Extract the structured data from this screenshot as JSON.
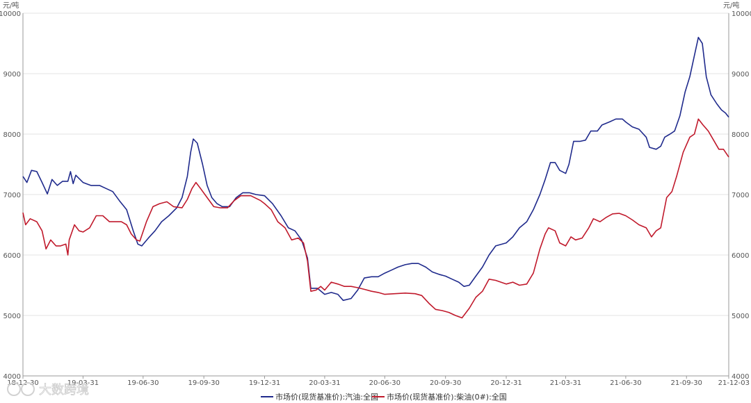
{
  "chart_data": {
    "type": "line",
    "unit_left": "元/吨",
    "unit_right": "元/吨",
    "ylim": [
      4000,
      10000
    ],
    "y_ticks": [
      4000,
      5000,
      6000,
      7000,
      8000,
      9000,
      10000
    ],
    "x_ticks": [
      "18-12-30",
      "19-03-31",
      "19-06-30",
      "19-09-30",
      "19-12-31",
      "20-03-31",
      "20-06-30",
      "20-09-30",
      "20-12-31",
      "21-03-31",
      "21-06-30",
      "21-09-30",
      "21-12-03"
    ],
    "grid": true,
    "legend_position": "bottom-center",
    "watermark": "大数跨境",
    "series": [
      {
        "name": "市场价(现货基准价):汽油:全国",
        "color": "#1f2a8c",
        "points": [
          [
            "18-12-30",
            7300
          ],
          [
            "19-01-05",
            7200
          ],
          [
            "19-01-12",
            7400
          ],
          [
            "19-01-20",
            7380
          ],
          [
            "19-01-28",
            7200
          ],
          [
            "19-02-05",
            7010
          ],
          [
            "19-02-12",
            7250
          ],
          [
            "19-02-20",
            7150
          ],
          [
            "19-02-28",
            7220
          ],
          [
            "19-03-08",
            7220
          ],
          [
            "19-03-12",
            7380
          ],
          [
            "19-03-16",
            7180
          ],
          [
            "19-03-20",
            7320
          ],
          [
            "19-03-31",
            7200
          ],
          [
            "19-04-12",
            7150
          ],
          [
            "19-04-25",
            7150
          ],
          [
            "19-05-05",
            7100
          ],
          [
            "19-05-15",
            7050
          ],
          [
            "19-05-25",
            6900
          ],
          [
            "19-06-05",
            6750
          ],
          [
            "19-06-15",
            6400
          ],
          [
            "19-06-22",
            6180
          ],
          [
            "19-06-28",
            6150
          ],
          [
            "19-07-08",
            6280
          ],
          [
            "19-07-18",
            6400
          ],
          [
            "19-07-28",
            6550
          ],
          [
            "19-08-08",
            6650
          ],
          [
            "19-08-20",
            6780
          ],
          [
            "19-08-28",
            6950
          ],
          [
            "19-09-05",
            7300
          ],
          [
            "19-09-10",
            7700
          ],
          [
            "19-09-14",
            7920
          ],
          [
            "19-09-20",
            7850
          ],
          [
            "19-09-28",
            7500
          ],
          [
            "19-10-05",
            7150
          ],
          [
            "19-10-12",
            6950
          ],
          [
            "19-10-20",
            6850
          ],
          [
            "19-10-28",
            6800
          ],
          [
            "19-11-08",
            6800
          ],
          [
            "19-11-18",
            6950
          ],
          [
            "19-11-28",
            7030
          ],
          [
            "19-12-08",
            7030
          ],
          [
            "19-12-18",
            7000
          ],
          [
            "19-12-31",
            6980
          ],
          [
            "20-01-12",
            6850
          ],
          [
            "20-01-25",
            6650
          ],
          [
            "20-02-05",
            6450
          ],
          [
            "20-02-15",
            6400
          ],
          [
            "20-02-25",
            6250
          ],
          [
            "20-03-05",
            5950
          ],
          [
            "20-03-10",
            5450
          ],
          [
            "20-03-20",
            5450
          ],
          [
            "20-03-31",
            5350
          ],
          [
            "20-04-10",
            5380
          ],
          [
            "20-04-20",
            5350
          ],
          [
            "20-04-28",
            5250
          ],
          [
            "20-05-10",
            5280
          ],
          [
            "20-05-20",
            5420
          ],
          [
            "20-05-30",
            5620
          ],
          [
            "20-06-10",
            5640
          ],
          [
            "20-06-20",
            5640
          ],
          [
            "20-06-30",
            5700
          ],
          [
            "20-07-10",
            5750
          ],
          [
            "20-07-20",
            5800
          ],
          [
            "20-07-31",
            5840
          ],
          [
            "20-08-10",
            5860
          ],
          [
            "20-08-20",
            5860
          ],
          [
            "20-08-31",
            5800
          ],
          [
            "20-09-10",
            5720
          ],
          [
            "20-09-20",
            5680
          ],
          [
            "20-09-30",
            5650
          ],
          [
            "20-10-10",
            5600
          ],
          [
            "20-10-20",
            5550
          ],
          [
            "20-10-28",
            5480
          ],
          [
            "20-11-05",
            5500
          ],
          [
            "20-11-15",
            5650
          ],
          [
            "20-11-25",
            5800
          ],
          [
            "20-12-05",
            6000
          ],
          [
            "20-12-15",
            6150
          ],
          [
            "20-12-31",
            6200
          ],
          [
            "21-01-10",
            6300
          ],
          [
            "21-01-20",
            6450
          ],
          [
            "21-01-31",
            6550
          ],
          [
            "21-02-10",
            6750
          ],
          [
            "21-02-20",
            7000
          ],
          [
            "21-02-28",
            7250
          ],
          [
            "21-03-08",
            7530
          ],
          [
            "21-03-15",
            7530
          ],
          [
            "21-03-22",
            7400
          ],
          [
            "21-03-31",
            7350
          ],
          [
            "21-04-05",
            7500
          ],
          [
            "21-04-12",
            7880
          ],
          [
            "21-04-22",
            7880
          ],
          [
            "21-04-30",
            7900
          ],
          [
            "21-05-08",
            8050
          ],
          [
            "21-05-18",
            8050
          ],
          [
            "21-05-25",
            8150
          ],
          [
            "21-06-05",
            8200
          ],
          [
            "21-06-15",
            8250
          ],
          [
            "21-06-25",
            8250
          ],
          [
            "21-06-30",
            8200
          ],
          [
            "21-07-10",
            8120
          ],
          [
            "21-07-20",
            8080
          ],
          [
            "21-07-31",
            7950
          ],
          [
            "21-08-05",
            7780
          ],
          [
            "21-08-15",
            7750
          ],
          [
            "21-08-22",
            7800
          ],
          [
            "21-08-28",
            7950
          ],
          [
            "21-09-05",
            8000
          ],
          [
            "21-09-12",
            8050
          ],
          [
            "21-09-20",
            8300
          ],
          [
            "21-09-28",
            8700
          ],
          [
            "21-10-05",
            8950
          ],
          [
            "21-10-12",
            9300
          ],
          [
            "21-10-18",
            9600
          ],
          [
            "21-10-24",
            9500
          ],
          [
            "21-10-30",
            8950
          ],
          [
            "21-11-06",
            8650
          ],
          [
            "21-11-15",
            8500
          ],
          [
            "21-11-22",
            8400
          ],
          [
            "21-11-28",
            8350
          ],
          [
            "21-12-03",
            8280
          ]
        ]
      },
      {
        "name": "市场价(现货基准价):柴油(0#):全国",
        "color": "#c0192b",
        "points": [
          [
            "18-12-30",
            6700
          ],
          [
            "19-01-03",
            6500
          ],
          [
            "19-01-10",
            6600
          ],
          [
            "19-01-20",
            6550
          ],
          [
            "19-01-28",
            6400
          ],
          [
            "19-02-03",
            6100
          ],
          [
            "19-02-10",
            6250
          ],
          [
            "19-02-18",
            6150
          ],
          [
            "19-02-25",
            6150
          ],
          [
            "19-03-05",
            6180
          ],
          [
            "19-03-08",
            6000
          ],
          [
            "19-03-10",
            6250
          ],
          [
            "19-03-18",
            6500
          ],
          [
            "19-03-25",
            6400
          ],
          [
            "19-03-31",
            6380
          ],
          [
            "19-04-10",
            6450
          ],
          [
            "19-04-20",
            6650
          ],
          [
            "19-04-30",
            6650
          ],
          [
            "19-05-10",
            6550
          ],
          [
            "19-05-20",
            6550
          ],
          [
            "19-05-28",
            6550
          ],
          [
            "19-06-05",
            6500
          ],
          [
            "19-06-12",
            6350
          ],
          [
            "19-06-20",
            6250
          ],
          [
            "19-06-25",
            6230
          ],
          [
            "19-07-05",
            6550
          ],
          [
            "19-07-15",
            6800
          ],
          [
            "19-07-25",
            6850
          ],
          [
            "19-08-05",
            6880
          ],
          [
            "19-08-15",
            6800
          ],
          [
            "19-08-28",
            6780
          ],
          [
            "19-09-05",
            6920
          ],
          [
            "19-09-12",
            7100
          ],
          [
            "19-09-18",
            7200
          ],
          [
            "19-09-25",
            7100
          ],
          [
            "19-10-05",
            6950
          ],
          [
            "19-10-15",
            6800
          ],
          [
            "19-10-25",
            6780
          ],
          [
            "19-11-05",
            6780
          ],
          [
            "19-11-15",
            6900
          ],
          [
            "19-11-25",
            6980
          ],
          [
            "19-12-10",
            6980
          ],
          [
            "19-12-25",
            6900
          ],
          [
            "19-12-31",
            6850
          ],
          [
            "20-01-10",
            6750
          ],
          [
            "20-01-20",
            6550
          ],
          [
            "20-01-31",
            6450
          ],
          [
            "20-02-10",
            6250
          ],
          [
            "20-02-20",
            6280
          ],
          [
            "20-02-28",
            6200
          ],
          [
            "20-03-05",
            5900
          ],
          [
            "20-03-10",
            5400
          ],
          [
            "20-03-18",
            5420
          ],
          [
            "20-03-25",
            5480
          ],
          [
            "20-03-31",
            5420
          ],
          [
            "20-04-10",
            5550
          ],
          [
            "20-04-20",
            5520
          ],
          [
            "20-04-30",
            5480
          ],
          [
            "20-05-10",
            5480
          ],
          [
            "20-05-20",
            5460
          ],
          [
            "20-05-31",
            5430
          ],
          [
            "20-06-10",
            5400
          ],
          [
            "20-06-20",
            5380
          ],
          [
            "20-06-30",
            5350
          ],
          [
            "20-07-15",
            5360
          ],
          [
            "20-07-31",
            5370
          ],
          [
            "20-08-15",
            5360
          ],
          [
            "20-08-25",
            5330
          ],
          [
            "20-09-05",
            5200
          ],
          [
            "20-09-15",
            5100
          ],
          [
            "20-09-25",
            5080
          ],
          [
            "20-10-05",
            5050
          ],
          [
            "20-10-15",
            5000
          ],
          [
            "20-10-25",
            4960
          ],
          [
            "20-11-05",
            5120
          ],
          [
            "20-11-15",
            5300
          ],
          [
            "20-11-25",
            5400
          ],
          [
            "20-12-05",
            5600
          ],
          [
            "20-12-15",
            5580
          ],
          [
            "20-12-31",
            5520
          ],
          [
            "21-01-10",
            5550
          ],
          [
            "21-01-20",
            5500
          ],
          [
            "21-01-31",
            5520
          ],
          [
            "21-02-10",
            5700
          ],
          [
            "21-02-20",
            6100
          ],
          [
            "21-02-28",
            6350
          ],
          [
            "21-03-05",
            6450
          ],
          [
            "21-03-15",
            6400
          ],
          [
            "21-03-22",
            6200
          ],
          [
            "21-03-31",
            6150
          ],
          [
            "21-04-08",
            6300
          ],
          [
            "21-04-15",
            6250
          ],
          [
            "21-04-25",
            6280
          ],
          [
            "21-05-05",
            6450
          ],
          [
            "21-05-12",
            6600
          ],
          [
            "21-05-22",
            6550
          ],
          [
            "21-05-31",
            6620
          ],
          [
            "21-06-10",
            6680
          ],
          [
            "21-06-20",
            6690
          ],
          [
            "21-06-30",
            6650
          ],
          [
            "21-07-10",
            6580
          ],
          [
            "21-07-20",
            6500
          ],
          [
            "21-07-31",
            6450
          ],
          [
            "21-08-08",
            6300
          ],
          [
            "21-08-15",
            6400
          ],
          [
            "21-08-22",
            6450
          ],
          [
            "21-08-31",
            6950
          ],
          [
            "21-09-08",
            7050
          ],
          [
            "21-09-15",
            7300
          ],
          [
            "21-09-25",
            7700
          ],
          [
            "21-10-05",
            7950
          ],
          [
            "21-10-12",
            8000
          ],
          [
            "21-10-18",
            8250
          ],
          [
            "21-10-25",
            8150
          ],
          [
            "21-11-02",
            8050
          ],
          [
            "21-11-10",
            7900
          ],
          [
            "21-11-18",
            7750
          ],
          [
            "21-11-25",
            7750
          ],
          [
            "21-12-03",
            7620
          ]
        ]
      }
    ]
  }
}
